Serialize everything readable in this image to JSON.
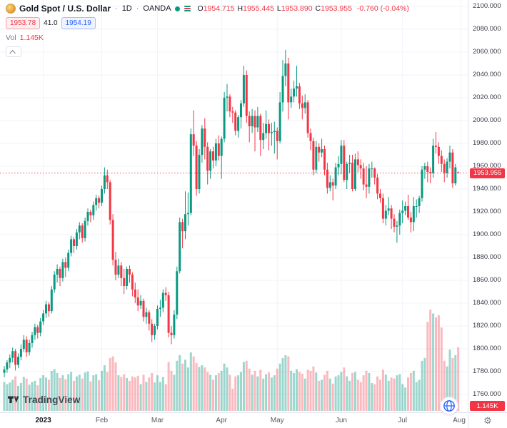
{
  "header": {
    "symbol_title": "Gold Spot / U.S. Dollar",
    "separator": "·",
    "interval": "1D",
    "exchange": "OANDA",
    "ohlc": {
      "o_label": "O",
      "o": "1954.715",
      "h_label": "H",
      "h": "1955.445",
      "l_label": "L",
      "l": "1953.890",
      "c_label": "C",
      "c": "1953.955",
      "change": "-0.760 (-0.04%)"
    },
    "sell_price": "1953.78",
    "spread": "41.0",
    "buy_price": "1954.19",
    "vol_label": "Vol",
    "vol_value": "1.145K"
  },
  "footer": {
    "logo_text": "TradingView"
  },
  "price_scale": {
    "labels": [
      "2100.000",
      "2080.000",
      "2060.000",
      "2040.000",
      "2020.000",
      "2000.000",
      "1980.000",
      "1960.000",
      "1940.000",
      "1920.000",
      "1900.000",
      "1880.000",
      "1860.000",
      "1840.000",
      "1820.000",
      "1800.000",
      "1780.000",
      "1760.000"
    ],
    "last_price_label": "1953.955",
    "last_vol_label": "1.145K"
  },
  "time_scale": {
    "gear_icon": "⚙",
    "labels": [
      {
        "text": "2023",
        "index": 14,
        "major": true
      },
      {
        "text": "Feb",
        "index": 35,
        "major": false
      },
      {
        "text": "Mar",
        "index": 55,
        "major": false
      },
      {
        "text": "Apr",
        "index": 78,
        "major": false
      },
      {
        "text": "May",
        "index": 98,
        "major": false
      },
      {
        "text": "Jun",
        "index": 121,
        "major": false
      },
      {
        "text": "Jul",
        "index": 143,
        "major": false
      },
      {
        "text": "Aug",
        "index": 164,
        "major": false
      }
    ]
  },
  "chart_data": {
    "type": "candlestick_with_volume",
    "title": "Gold Spot / U.S. Dollar",
    "interval": "1D",
    "exchange": "OANDA",
    "last_price": 1953.955,
    "last_change": -0.76,
    "last_change_pct": -0.04,
    "last_volume": 1145,
    "price_axis": {
      "min": 1760,
      "max": 2100,
      "step": 20
    },
    "colors": {
      "up": "#089981",
      "down": "#f23645",
      "vol_up": "rgba(8,153,129,0.40)",
      "vol_down": "rgba(242,54,69,0.35)",
      "grid": "#f0f3fa",
      "price_line": "#f23645",
      "accent_blue": "#2962ff"
    },
    "note": "candles are [open, high, low, close, volume], daily, Dec 2022 through Jul 2023",
    "candles": [
      [
        1779,
        1785,
        1775,
        1782,
        520
      ],
      [
        1782,
        1790,
        1779,
        1788,
        480
      ],
      [
        1788,
        1795,
        1783,
        1792,
        510
      ],
      [
        1792,
        1801,
        1788,
        1798,
        560
      ],
      [
        1798,
        1800,
        1781,
        1786,
        620
      ],
      [
        1786,
        1796,
        1783,
        1793,
        450
      ],
      [
        1793,
        1804,
        1790,
        1800,
        500
      ],
      [
        1800,
        1812,
        1797,
        1808,
        610
      ],
      [
        1808,
        1811,
        1793,
        1797,
        580
      ],
      [
        1797,
        1808,
        1794,
        1805,
        470
      ],
      [
        1805,
        1815,
        1801,
        1812,
        520
      ],
      [
        1812,
        1822,
        1808,
        1819,
        540
      ],
      [
        1819,
        1821,
        1809,
        1814,
        460
      ],
      [
        1814,
        1827,
        1811,
        1824,
        590
      ],
      [
        1824,
        1834,
        1821,
        1831,
        640
      ],
      [
        1831,
        1842,
        1827,
        1839,
        600
      ],
      [
        1839,
        1841,
        1828,
        1833,
        560
      ],
      [
        1833,
        1855,
        1831,
        1852,
        720
      ],
      [
        1852,
        1868,
        1849,
        1865,
        750
      ],
      [
        1865,
        1874,
        1858,
        1870,
        680
      ],
      [
        1870,
        1872,
        1855,
        1862,
        590
      ],
      [
        1862,
        1879,
        1859,
        1876,
        640
      ],
      [
        1876,
        1880,
        1863,
        1871,
        570
      ],
      [
        1871,
        1887,
        1868,
        1884,
        660
      ],
      [
        1884,
        1899,
        1881,
        1896,
        700
      ],
      [
        1896,
        1898,
        1884,
        1890,
        540
      ],
      [
        1890,
        1905,
        1887,
        1902,
        620
      ],
      [
        1902,
        1911,
        1896,
        1908,
        650
      ],
      [
        1908,
        1910,
        1893,
        1897,
        580
      ],
      [
        1897,
        1915,
        1894,
        1912,
        690
      ],
      [
        1912,
        1923,
        1908,
        1920,
        710
      ],
      [
        1920,
        1922,
        1911,
        1917,
        530
      ],
      [
        1917,
        1929,
        1913,
        1926,
        640
      ],
      [
        1926,
        1935,
        1921,
        1932,
        660
      ],
      [
        1932,
        1934,
        1923,
        1928,
        550
      ],
      [
        1928,
        1943,
        1925,
        1940,
        720
      ],
      [
        1940,
        1959,
        1936,
        1952,
        820
      ],
      [
        1952,
        1957,
        1940,
        1946,
        700
      ],
      [
        1946,
        1948,
        1909,
        1913,
        950
      ],
      [
        1913,
        1918,
        1873,
        1878,
        980
      ],
      [
        1878,
        1885,
        1860,
        1865,
        870
      ],
      [
        1865,
        1879,
        1862,
        1873,
        640
      ],
      [
        1873,
        1876,
        1855,
        1862,
        610
      ],
      [
        1862,
        1870,
        1848,
        1855,
        660
      ],
      [
        1855,
        1872,
        1852,
        1870,
        590
      ],
      [
        1870,
        1873,
        1858,
        1865,
        540
      ],
      [
        1865,
        1867,
        1846,
        1852,
        620
      ],
      [
        1852,
        1858,
        1840,
        1845,
        600
      ],
      [
        1845,
        1852,
        1833,
        1838,
        630
      ],
      [
        1838,
        1847,
        1835,
        1842,
        480
      ],
      [
        1842,
        1844,
        1824,
        1828,
        650
      ],
      [
        1828,
        1836,
        1822,
        1832,
        520
      ],
      [
        1832,
        1834,
        1816,
        1822,
        600
      ],
      [
        1822,
        1826,
        1806,
        1812,
        680
      ],
      [
        1812,
        1822,
        1808,
        1820,
        510
      ],
      [
        1820,
        1838,
        1817,
        1835,
        640
      ],
      [
        1835,
        1843,
        1828,
        1836,
        520
      ],
      [
        1836,
        1852,
        1832,
        1849,
        610
      ],
      [
        1849,
        1854,
        1842,
        1847,
        480
      ],
      [
        1847,
        1850,
        1810,
        1814,
        880
      ],
      [
        1814,
        1820,
        1804,
        1812,
        720
      ],
      [
        1812,
        1834,
        1809,
        1830,
        650
      ],
      [
        1830,
        1872,
        1826,
        1868,
        900
      ],
      [
        1868,
        1915,
        1866,
        1911,
        1000
      ],
      [
        1911,
        1914,
        1888,
        1903,
        850
      ],
      [
        1903,
        1938,
        1896,
        1918,
        920
      ],
      [
        1918,
        1937,
        1908,
        1919,
        780
      ],
      [
        1919,
        1993,
        1917,
        1988,
        1050
      ],
      [
        1988,
        2009,
        1969,
        1978,
        980
      ],
      [
        1978,
        1982,
        1934,
        1940,
        860
      ],
      [
        1940,
        1975,
        1936,
        1970,
        790
      ],
      [
        1970,
        1996,
        1963,
        1993,
        820
      ],
      [
        1993,
        2002,
        1966,
        1977,
        780
      ],
      [
        1977,
        1981,
        1944,
        1956,
        700
      ],
      [
        1956,
        1975,
        1949,
        1973,
        650
      ],
      [
        1973,
        1977,
        1958,
        1965,
        560
      ],
      [
        1965,
        1984,
        1960,
        1980,
        640
      ],
      [
        1980,
        1987,
        1965,
        1969,
        680
      ],
      [
        1969,
        1986,
        1949,
        1984,
        720
      ],
      [
        1984,
        2025,
        1981,
        2020,
        850
      ],
      [
        2020,
        2032,
        2008,
        2021,
        780
      ],
      [
        2021,
        2023,
        2003,
        2008,
        650
      ],
      [
        2008,
        2012,
        1998,
        2007,
        400
      ],
      [
        2007,
        2009,
        1987,
        1991,
        620
      ],
      [
        1991,
        2005,
        1985,
        2003,
        640
      ],
      [
        2003,
        2018,
        1993,
        2015,
        700
      ],
      [
        2015,
        2048,
        2012,
        2040,
        880
      ],
      [
        2040,
        2044,
        1998,
        2004,
        900
      ],
      [
        2004,
        2008,
        1981,
        1995,
        760
      ],
      [
        1995,
        2010,
        1989,
        2004,
        650
      ],
      [
        2004,
        2009,
        1973,
        1994,
        720
      ],
      [
        1994,
        2012,
        1990,
        2004,
        620
      ],
      [
        2004,
        2006,
        1969,
        1983,
        740
      ],
      [
        1983,
        1998,
        1975,
        1989,
        580
      ],
      [
        1989,
        2009,
        1984,
        1997,
        660
      ],
      [
        1997,
        2001,
        1974,
        1989,
        690
      ],
      [
        1989,
        1998,
        1978,
        1990,
        600
      ],
      [
        1990,
        1999,
        1971,
        1991,
        640
      ],
      [
        1991,
        1994,
        1966,
        1982,
        760
      ],
      [
        1982,
        2025,
        1980,
        2016,
        850
      ],
      [
        2016,
        2053,
        2008,
        2039,
        950
      ],
      [
        2039,
        2062,
        2030,
        2050,
        1000
      ],
      [
        2050,
        2055,
        2001,
        2016,
        980
      ],
      [
        2016,
        2028,
        2011,
        2021,
        720
      ],
      [
        2021,
        2035,
        2016,
        2028,
        680
      ],
      [
        2028,
        2048,
        2021,
        2030,
        750
      ],
      [
        2030,
        2033,
        2010,
        2015,
        700
      ],
      [
        2015,
        2022,
        2001,
        2011,
        670
      ],
      [
        2011,
        2023,
        2006,
        2016,
        580
      ],
      [
        2016,
        2018,
        1985,
        1989,
        740
      ],
      [
        1989,
        1993,
        1974,
        1982,
        720
      ],
      [
        1982,
        1985,
        1952,
        1957,
        800
      ],
      [
        1957,
        1982,
        1954,
        1977,
        690
      ],
      [
        1977,
        1980,
        1964,
        1972,
        540
      ],
      [
        1972,
        1984,
        1968,
        1975,
        560
      ],
      [
        1975,
        1978,
        1952,
        1957,
        650
      ],
      [
        1957,
        1963,
        1936,
        1941,
        720
      ],
      [
        1941,
        1952,
        1938,
        1946,
        580
      ],
      [
        1946,
        1949,
        1930,
        1943,
        490
      ],
      [
        1943,
        1963,
        1940,
        1959,
        620
      ],
      [
        1959,
        1969,
        1952,
        1962,
        640
      ],
      [
        1962,
        1983,
        1953,
        1978,
        700
      ],
      [
        1978,
        1983,
        1946,
        1948,
        780
      ],
      [
        1948,
        1964,
        1940,
        1962,
        620
      ],
      [
        1962,
        1970,
        1954,
        1963,
        540
      ],
      [
        1963,
        1970,
        1938,
        1940,
        680
      ],
      [
        1940,
        1971,
        1938,
        1966,
        700
      ],
      [
        1966,
        1973,
        1955,
        1961,
        560
      ],
      [
        1961,
        1966,
        1949,
        1958,
        520
      ],
      [
        1958,
        1963,
        1939,
        1944,
        640
      ],
      [
        1944,
        1960,
        1932,
        1942,
        720
      ],
      [
        1942,
        1962,
        1936,
        1958,
        680
      ],
      [
        1958,
        1964,
        1950,
        1958,
        500
      ],
      [
        1958,
        1959,
        1944,
        1950,
        480
      ],
      [
        1950,
        1953,
        1931,
        1936,
        620
      ],
      [
        1936,
        1940,
        1928,
        1932,
        560
      ],
      [
        1932,
        1936,
        1910,
        1914,
        740
      ],
      [
        1914,
        1926,
        1908,
        1921,
        650
      ],
      [
        1921,
        1933,
        1917,
        1923,
        540
      ],
      [
        1923,
        1926,
        1905,
        1914,
        600
      ],
      [
        1914,
        1918,
        1902,
        1907,
        580
      ],
      [
        1907,
        1912,
        1893,
        1908,
        640
      ],
      [
        1908,
        1922,
        1900,
        1919,
        660
      ],
      [
        1919,
        1930,
        1910,
        1921,
        480
      ],
      [
        1921,
        1929,
        1917,
        1925,
        420
      ],
      [
        1925,
        1935,
        1913,
        1915,
        600
      ],
      [
        1915,
        1920,
        1902,
        1911,
        680
      ],
      [
        1911,
        1933,
        1903,
        1925,
        720
      ],
      [
        1925,
        1931,
        1915,
        1925,
        520
      ],
      [
        1925,
        1934,
        1919,
        1932,
        560
      ],
      [
        1932,
        1960,
        1929,
        1957,
        900
      ],
      [
        1957,
        1963,
        1949,
        1960,
        950
      ],
      [
        1960,
        1964,
        1946,
        1955,
        1600
      ],
      [
        1955,
        1959,
        1945,
        1954,
        1820
      ],
      [
        1954,
        1984,
        1950,
        1978,
        1750
      ],
      [
        1978,
        1990,
        1971,
        1977,
        1680
      ],
      [
        1977,
        1981,
        1962,
        1969,
        1720
      ],
      [
        1969,
        1974,
        1955,
        1962,
        1500
      ],
      [
        1962,
        1966,
        1946,
        1954,
        900
      ],
      [
        1954,
        1967,
        1950,
        1964,
        800
      ],
      [
        1964,
        1978,
        1958,
        1972,
        1100
      ],
      [
        1972,
        1975,
        1941,
        1945,
        950
      ],
      [
        1945,
        1962,
        1943,
        1959,
        1000
      ],
      [
        1954.7,
        1955.4,
        1953.9,
        1954.0,
        1145
      ]
    ],
    "month_ticks": [
      {
        "label": "2023",
        "index": 14
      },
      {
        "label": "Feb",
        "index": 35
      },
      {
        "label": "Mar",
        "index": 55
      },
      {
        "label": "Apr",
        "index": 78
      },
      {
        "label": "May",
        "index": 98
      },
      {
        "label": "Jun",
        "index": 121
      },
      {
        "label": "Jul",
        "index": 143
      },
      {
        "label": "Aug",
        "index": 164
      }
    ]
  }
}
